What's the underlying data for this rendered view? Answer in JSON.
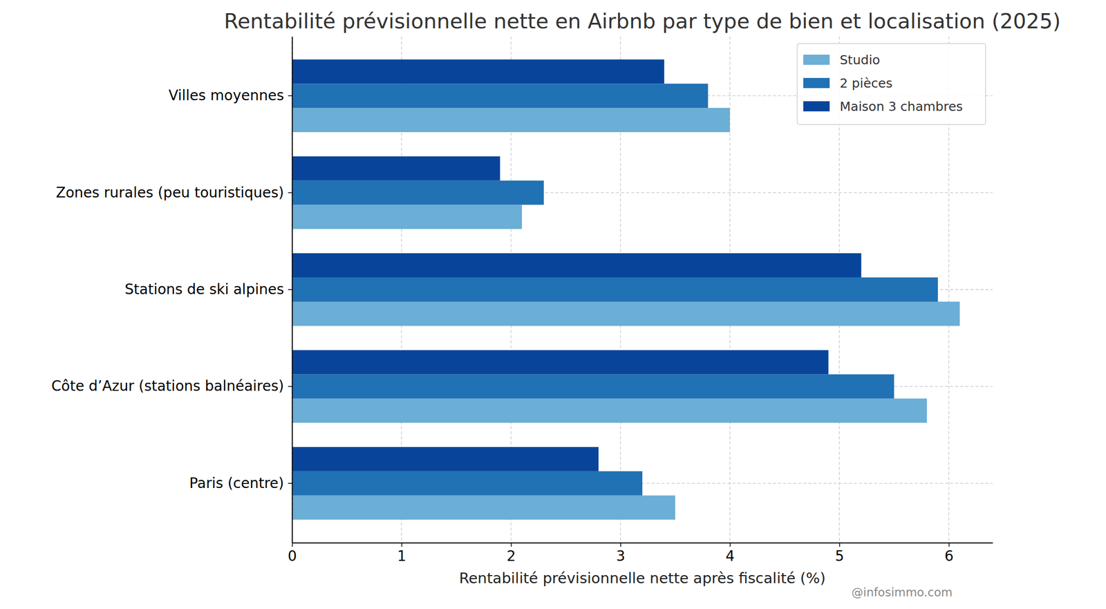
{
  "chart_data": {
    "type": "bar",
    "orientation": "horizontal",
    "title": "Rentabilité prévisionnelle nette en Airbnb par type de bien et localisation (2025)",
    "x_label": "Rentabilité prévisionnelle nette après fiscalité (%)",
    "annotations": [
      "@infosimmo.com"
    ],
    "categories": [
      "Paris (centre)",
      "Côte d’Azur (stations balnéaires)",
      "Stations de ski alpines",
      "Zones rurales (peu touristiques)",
      "Villes moyennes"
    ],
    "series": [
      {
        "name": "Studio",
        "color": "#6baed6",
        "values": [
          3.5,
          5.8,
          6.1,
          2.1,
          4.0
        ]
      },
      {
        "name": "2 pièces",
        "color": "#2171b5",
        "values": [
          3.2,
          5.5,
          5.9,
          2.3,
          3.8
        ]
      },
      {
        "name": "Maison 3 chambres",
        "color": "#08459a",
        "values": [
          2.8,
          4.9,
          5.2,
          1.9,
          3.4
        ]
      }
    ],
    "xlim": [
      0,
      6.4
    ],
    "xticks": [
      0,
      1,
      2,
      3,
      4,
      5,
      6
    ],
    "grid": true,
    "legend": "upper-right"
  }
}
